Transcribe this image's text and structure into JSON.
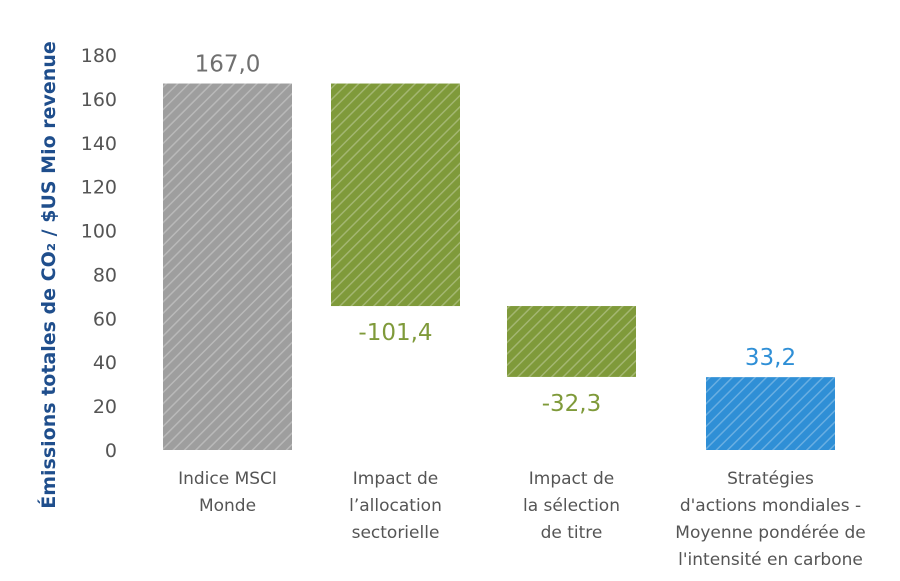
{
  "chart_data": {
    "type": "bar",
    "subtype": "waterfall",
    "ylabel": "Émissions totales de CO₂ / $US  Mio revenue",
    "ylim": [
      0,
      180
    ],
    "yticks": [
      0,
      20,
      40,
      60,
      80,
      100,
      120,
      140,
      160,
      180
    ],
    "grid": false,
    "categories": [
      [
        "Indice MSCI",
        "Monde"
      ],
      [
        "Impact de",
        "l’allocation",
        "sectorielle"
      ],
      [
        "Impact de",
        "la sélection",
        "de titre"
      ],
      [
        "Stratégies",
        "d'actions mondiales -",
        "Moyenne pondérée de",
        "l'intensité en carbone"
      ]
    ],
    "bars": [
      {
        "start": 0,
        "end": 167.0,
        "label": "167,0",
        "color": "#9e9e9e",
        "label_color": "#707070",
        "label_pos": "above"
      },
      {
        "start": 167.0,
        "end": 65.6,
        "label": "-101,4",
        "color": "#7f9a3a",
        "label_color": "#7f9a3a",
        "label_pos": "below"
      },
      {
        "start": 65.6,
        "end": 33.3,
        "label": "-32,3",
        "color": "#7f9a3a",
        "label_color": "#7f9a3a",
        "label_pos": "below"
      },
      {
        "start": 0,
        "end": 33.2,
        "label": "33,2",
        "color": "#2f8fd6",
        "label_color": "#2f8fd6",
        "label_pos": "above"
      }
    ]
  }
}
